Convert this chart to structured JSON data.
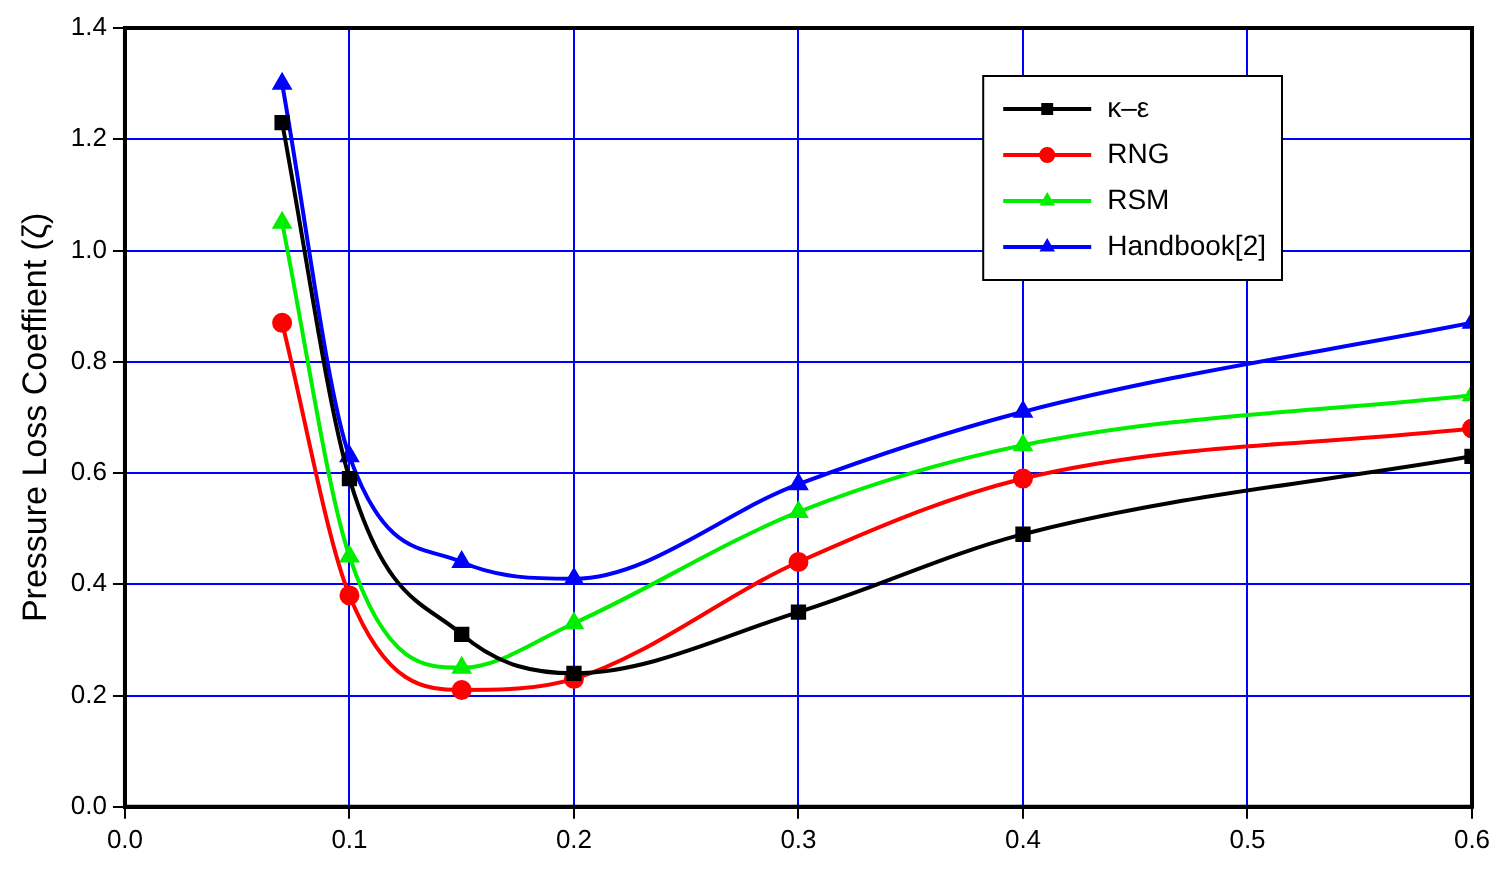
{
  "chart_data": {
    "type": "line",
    "ylabel": "Pressure Loss Coeffient (ζ)",
    "x": [
      0.07,
      0.1,
      0.15,
      0.2,
      0.3,
      0.4,
      0.6
    ],
    "series": [
      {
        "name": "κ–ε",
        "color": "#000000",
        "marker": "square",
        "values": [
          1.23,
          0.59,
          0.31,
          0.24,
          0.35,
          0.49,
          0.63
        ]
      },
      {
        "name": "RNG",
        "color": "#ff0000",
        "marker": "circle",
        "values": [
          0.87,
          0.38,
          0.21,
          0.23,
          0.44,
          0.59,
          0.68
        ]
      },
      {
        "name": "RSM",
        "color": "#00ee00",
        "marker": "triangle",
        "values": [
          1.05,
          0.45,
          0.25,
          0.33,
          0.53,
          0.65,
          0.74
        ]
      },
      {
        "name": "Handbook[2]",
        "color": "#0000ff",
        "marker": "triangle",
        "values": [
          1.3,
          0.63,
          0.44,
          0.41,
          0.58,
          0.71,
          0.87
        ]
      }
    ],
    "xlim": [
      0,
      0.6
    ],
    "xticks": [
      {
        "value": 0,
        "label": "0.0"
      },
      {
        "value": 0.1,
        "label": "0.1"
      },
      {
        "value": 0.2,
        "label": "0.2"
      },
      {
        "value": 0.3,
        "label": "0.3"
      },
      {
        "value": 0.4,
        "label": "0.4"
      },
      {
        "value": 0.5,
        "label": "0.5"
      },
      {
        "value": 0.6,
        "label": "0.6"
      }
    ],
    "ylim": [
      0,
      1.4
    ],
    "yticks": [
      {
        "value": 0,
        "label": "0.0"
      },
      {
        "value": 0.2,
        "label": "0.2"
      },
      {
        "value": 0.4,
        "label": "0.4"
      },
      {
        "value": 0.6,
        "label": "0.6"
      },
      {
        "value": 0.8,
        "label": "0.8"
      },
      {
        "value": 1,
        "label": "1.0"
      },
      {
        "value": 1.2,
        "label": "1.2"
      },
      {
        "value": 1.4,
        "label": "1.4"
      }
    ],
    "grid": true,
    "legend": "top right",
    "line_style": "solid"
  }
}
